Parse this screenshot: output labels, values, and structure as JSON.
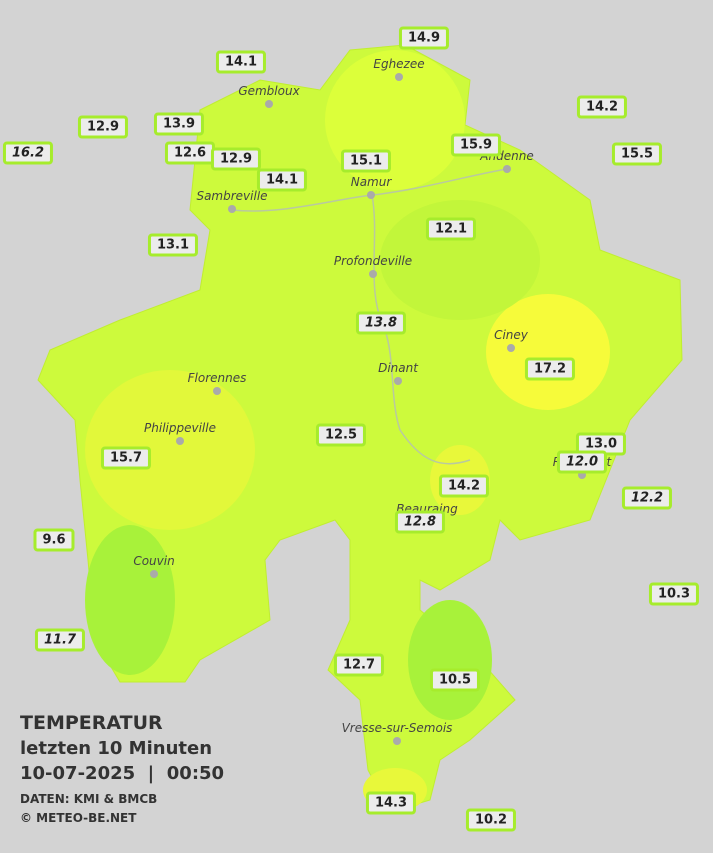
{
  "stations": [
    {
      "label": "14.9",
      "italic": false
    },
    {
      "label": "14.1",
      "italic": false
    },
    {
      "label": "12.9",
      "italic": false
    },
    {
      "label": "13.9",
      "italic": false
    },
    {
      "label": "16.2",
      "italic": true
    },
    {
      "label": "12.6",
      "italic": false
    },
    {
      "label": "12.9",
      "italic": false
    },
    {
      "label": "14.2",
      "italic": false
    },
    {
      "label": "15.5",
      "italic": false
    },
    {
      "label": "15.9",
      "italic": false
    },
    {
      "label": "15.1",
      "italic": false
    },
    {
      "label": "14.1",
      "italic": false
    },
    {
      "label": "13.1",
      "italic": false
    },
    {
      "label": "12.1",
      "italic": false
    },
    {
      "label": "13.8",
      "italic": true
    },
    {
      "label": "17.2",
      "italic": false
    },
    {
      "label": "12.5",
      "italic": false
    },
    {
      "label": "13.0",
      "italic": false
    },
    {
      "label": "12.0",
      "italic": true
    },
    {
      "label": "15.7",
      "italic": false
    },
    {
      "label": "14.2",
      "italic": false
    },
    {
      "label": "12.2",
      "italic": true
    },
    {
      "label": "12.8",
      "italic": true
    },
    {
      "label": "9.6",
      "italic": false
    },
    {
      "label": "10.3",
      "italic": false
    },
    {
      "label": "11.7",
      "italic": true
    },
    {
      "label": "12.7",
      "italic": false
    },
    {
      "label": "10.5",
      "italic": false
    },
    {
      "label": "14.3",
      "italic": false
    },
    {
      "label": "10.2",
      "italic": false
    }
  ],
  "towns": [
    "Eghezee",
    "Gembloux",
    "Andenne",
    "Namur",
    "Sambreville",
    "Profondeville",
    "Ciney",
    "Dinant",
    "Florennes",
    "Philippeville",
    "Rochefort",
    "Beauraing",
    "Couvin",
    "Vresse-sur-Semois"
  ],
  "legend": {
    "title": "TEMPERATUR",
    "subtitle": "letzten 10 Minuten",
    "timestamp": "10-07-2025  |  00:50",
    "source": "DATEN: KMI & BMCB",
    "copyright": "© METEO-BE.NET"
  }
}
